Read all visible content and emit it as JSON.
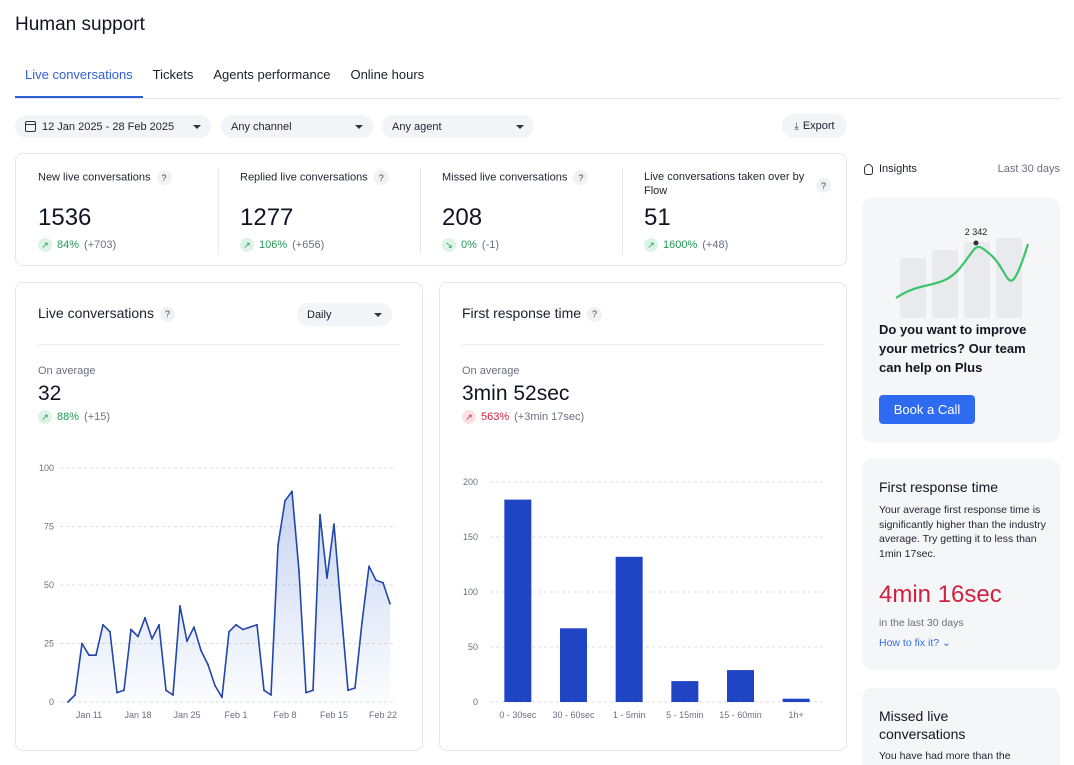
{
  "page": {
    "title": "Human support"
  },
  "tabs": [
    {
      "label": "Live conversations",
      "active": true
    },
    {
      "label": "Tickets",
      "active": false
    },
    {
      "label": "Agents performance",
      "active": false
    },
    {
      "label": "Online hours",
      "active": false
    }
  ],
  "filters": {
    "date_range": "12 Jan 2025 - 28 Feb 2025",
    "channel": "Any channel",
    "agent": "Any agent",
    "export_label": "Export"
  },
  "kpis": [
    {
      "label": "New live conversations",
      "value": "1536",
      "pct": "84%",
      "delta": "(+703)",
      "trend": "up"
    },
    {
      "label": "Replied live conversations",
      "value": "1277",
      "pct": "106%",
      "delta": "(+656)",
      "trend": "up"
    },
    {
      "label": "Missed live conversations",
      "value": "208",
      "pct": "0%",
      "delta": "(-1)",
      "trend": "down"
    },
    {
      "label": "Live conversations taken over by Flow",
      "value": "51",
      "pct": "1600%",
      "delta": "(+48)",
      "trend": "up"
    }
  ],
  "help_glyph": "?",
  "live_chart": {
    "title": "Live conversations",
    "granularity": "Daily",
    "avg_label": "On average",
    "avg_value": "32",
    "avg_pct": "88%",
    "avg_delta": "(+15)"
  },
  "frt_chart": {
    "title": "First response time",
    "avg_label": "On average",
    "avg_value": "3min 52sec",
    "avg_pct": "563%",
    "avg_delta": "(+3min 17sec)"
  },
  "chart_data": [
    {
      "type": "area",
      "title": "Live conversations",
      "ylim": [
        0,
        100
      ],
      "y_ticks": [
        0,
        25,
        50,
        75,
        100
      ],
      "x_tick_labels": [
        "Jan 11",
        "Jan 18",
        "Jan 25",
        "Feb 1",
        "Feb 8",
        "Feb 15",
        "Feb 22"
      ],
      "x_tick_index": [
        3,
        10,
        17,
        24,
        31,
        38,
        45
      ],
      "grid": true,
      "color": "#2346a9",
      "values": [
        0,
        3,
        25,
        20,
        20,
        33,
        30,
        4,
        5,
        31,
        28,
        36,
        27,
        33,
        5,
        3,
        41,
        26,
        32,
        22,
        16,
        7,
        2,
        30,
        33,
        31,
        32,
        33,
        5,
        3,
        67,
        86,
        90,
        56,
        4,
        5,
        80,
        53,
        76,
        40,
        5,
        6,
        34,
        58,
        52,
        51,
        42
      ]
    },
    {
      "type": "bar",
      "title": "First response time",
      "categories": [
        "0 - 30sec",
        "30 - 60sec",
        "1 - 5min",
        "5 - 15min",
        "15 - 60min",
        "1h+"
      ],
      "values": [
        184,
        67,
        132,
        19,
        29,
        3
      ],
      "ylim": [
        0,
        200
      ],
      "y_ticks": [
        0,
        50,
        100,
        150,
        200
      ],
      "grid": true,
      "color": "#1f45c4"
    }
  ],
  "insights": {
    "title": "Insights",
    "period": "Last 30 days",
    "promo": {
      "peak_label": "2 342",
      "text": "Do you want to improve your metrics? Our team can help on Plus",
      "button": "Book a Call"
    },
    "frt_card": {
      "title": "First response time",
      "text": "Your average first response time is significantly higher than the industry average. Try getting it to less than 1min 17sec.",
      "value": "4min 16sec",
      "period": "in the last 30 days",
      "link": "How to fix it?"
    },
    "missed_card": {
      "title": "Missed live conversations",
      "text": "You have had more than the"
    }
  },
  "colors": {
    "accent": "#3160d6",
    "good": "#1f9a55",
    "bad": "#d2203f",
    "button": "#2f6bf1"
  }
}
